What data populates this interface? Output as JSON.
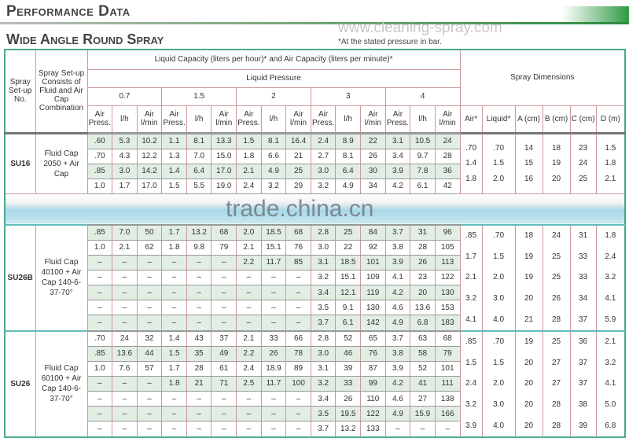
{
  "page_title": "Performance Data",
  "section_title": "Wide Angle Round Spray",
  "watermark_top": "www.cleaning-spray.com",
  "note": "*At the stated pressure in bar.",
  "watermark_band": "trade.china.cn",
  "colors": {
    "border": "#4aa88a",
    "row_shade": "#e2eee4",
    "band": "#a8d8e8"
  },
  "headers": {
    "setup_no": "Spray Set-up No.",
    "combination": "Spray Set-up Consists of Fluid and Air Cap Combination",
    "capacity": "Liquid Capacity (liters per hour)* and Air Capacity (liters per minute)*",
    "liquid_pressure": "Liquid Pressure",
    "pressures": [
      "0.7",
      "1.5",
      "2",
      "3",
      "4"
    ],
    "sub": [
      "Air Press.",
      "l/h",
      "Air l/min"
    ],
    "dimensions": "Spray Dimensions",
    "dim_cols": [
      "Air*",
      "Liquid*",
      "A (cm)",
      "B (cm)",
      "C (cm)",
      "D (m)"
    ]
  },
  "sections": [
    {
      "id": "SU16",
      "combination": "Fluid Cap 2050 + Air Cap",
      "shade_start": 0,
      "rows": [
        [
          ".60",
          "5.3",
          "10.2",
          "1.1",
          "8.1",
          "13.3",
          "1.5",
          "8.1",
          "16.4",
          "2.4",
          "8.9",
          "22",
          "3.1",
          "10.5",
          "24"
        ],
        [
          ".70",
          "4.3",
          "12.2",
          "1.3",
          "7.0",
          "15.0",
          "1.8",
          "6.6",
          "21",
          "2.7",
          "8.1",
          "26",
          "3.4",
          "9.7",
          "28"
        ],
        [
          ".85",
          "3.0",
          "14.2",
          "1.4",
          "6.4",
          "17.0",
          "2.1",
          "4.9",
          "25",
          "3.0",
          "6.4",
          "30",
          "3.9",
          "7.8",
          "36"
        ],
        [
          "1.0",
          "1.7",
          "17.0",
          "1.5",
          "5.5",
          "19.0",
          "2.4",
          "3.2",
          "29",
          "3.2",
          "4.9",
          "34",
          "4.2",
          "6.1",
          "42"
        ]
      ],
      "dims": [
        [
          ".70",
          ".70",
          "14",
          "18",
          "23",
          "1.5"
        ],
        [
          "1.4",
          "1.5",
          "15",
          "19",
          "24",
          "1.8"
        ],
        [
          "1.8",
          "2.0",
          "16",
          "20",
          "25",
          "2.1"
        ]
      ]
    },
    {
      "id": "SU26B",
      "combination": "Fluid Cap 40100 + Air Cap 140-6-37-70°",
      "shade_start": 0,
      "rows": [
        [
          ".85",
          "7.0",
          "50",
          "1.7",
          "13.2",
          "68",
          "2.0",
          "18.5",
          "68",
          "2.8",
          "25",
          "84",
          "3.7",
          "31",
          "96"
        ],
        [
          "1.0",
          "2.1",
          "62",
          "1.8",
          "9.8",
          "79",
          "2.1",
          "15.1",
          "76",
          "3.0",
          "22",
          "92",
          "3.8",
          "28",
          "105"
        ],
        [
          "–",
          "–",
          "–",
          "–",
          "–",
          "–",
          "2.2",
          "11.7",
          "85",
          "3.1",
          "18.5",
          "101",
          "3.9",
          "26",
          "113"
        ],
        [
          "–",
          "–",
          "–",
          "–",
          "–",
          "–",
          "–",
          "–",
          "–",
          "3.2",
          "15.1",
          "109",
          "4.1",
          "23",
          "122"
        ],
        [
          "–",
          "–",
          "–",
          "–",
          "–",
          "–",
          "–",
          "–",
          "–",
          "3.4",
          "12.1",
          "119",
          "4.2",
          "20",
          "130"
        ],
        [
          "–",
          "–",
          "–",
          "–",
          "–",
          "–",
          "–",
          "–",
          "–",
          "3.5",
          "9.1",
          "130",
          "4.6",
          "13.6",
          "153"
        ],
        [
          "–",
          "–",
          "–",
          "–",
          "–",
          "–",
          "–",
          "–",
          "–",
          "3.7",
          "6.1",
          "142",
          "4.9",
          "6.8",
          "183"
        ]
      ],
      "dims": [
        [
          ".85",
          ".70",
          "18",
          "24",
          "31",
          "1.8"
        ],
        [
          "1.7",
          "1.5",
          "19",
          "25",
          "33",
          "2.4"
        ],
        [
          "2.1",
          "2.0",
          "19",
          "25",
          "33",
          "3.2"
        ],
        [
          "3.2",
          "3.0",
          "20",
          "26",
          "34",
          "4.1"
        ],
        [
          "4.1",
          "4.0",
          "21",
          "28",
          "37",
          "5.9"
        ]
      ]
    },
    {
      "id": "SU26",
      "combination": "Fluid Cap 60100 + Air Cap 140-6-37-70°",
      "shade_start": 1,
      "rows": [
        [
          ".70",
          "24",
          "32",
          "1.4",
          "43",
          "37",
          "2.1",
          "33",
          "66",
          "2.8",
          "52",
          "65",
          "3.7",
          "63",
          "68"
        ],
        [
          ".85",
          "13.6",
          "44",
          "1.5",
          "35",
          "49",
          "2.2",
          "26",
          "78",
          "3.0",
          "46",
          "76",
          "3.8",
          "58",
          "79"
        ],
        [
          "1.0",
          "7.6",
          "57",
          "1.7",
          "28",
          "61",
          "2.4",
          "18.9",
          "89",
          "3.1",
          "39",
          "87",
          "3.9",
          "52",
          "101"
        ],
        [
          "–",
          "–",
          "–",
          "1.8",
          "21",
          "71",
          "2.5",
          "11.7",
          "100",
          "3.2",
          "33",
          "99",
          "4.2",
          "41",
          "111"
        ],
        [
          "–",
          "–",
          "–",
          "–",
          "–",
          "–",
          "–",
          "–",
          "–",
          "3.4",
          "26",
          "110",
          "4.6",
          "27",
          "138"
        ],
        [
          "–",
          "–",
          "–",
          "–",
          "–",
          "–",
          "–",
          "–",
          "–",
          "3.5",
          "19.5",
          "122",
          "4.9",
          "15.9",
          "166"
        ],
        [
          "–",
          "–",
          "–",
          "–",
          "–",
          "–",
          "–",
          "–",
          "–",
          "3.7",
          "13.2",
          "133",
          "–",
          "–",
          "–"
        ]
      ],
      "dims": [
        [
          ".85",
          ".70",
          "19",
          "25",
          "36",
          "2.1"
        ],
        [
          "1.5",
          "1.5",
          "20",
          "27",
          "37",
          "3.2"
        ],
        [
          "2.4",
          "2.0",
          "20",
          "27",
          "37",
          "4.1"
        ],
        [
          "3.2",
          "3.0",
          "20",
          "28",
          "38",
          "5.0"
        ],
        [
          "3.9",
          "4.0",
          "20",
          "28",
          "39",
          "6.8"
        ]
      ]
    }
  ]
}
